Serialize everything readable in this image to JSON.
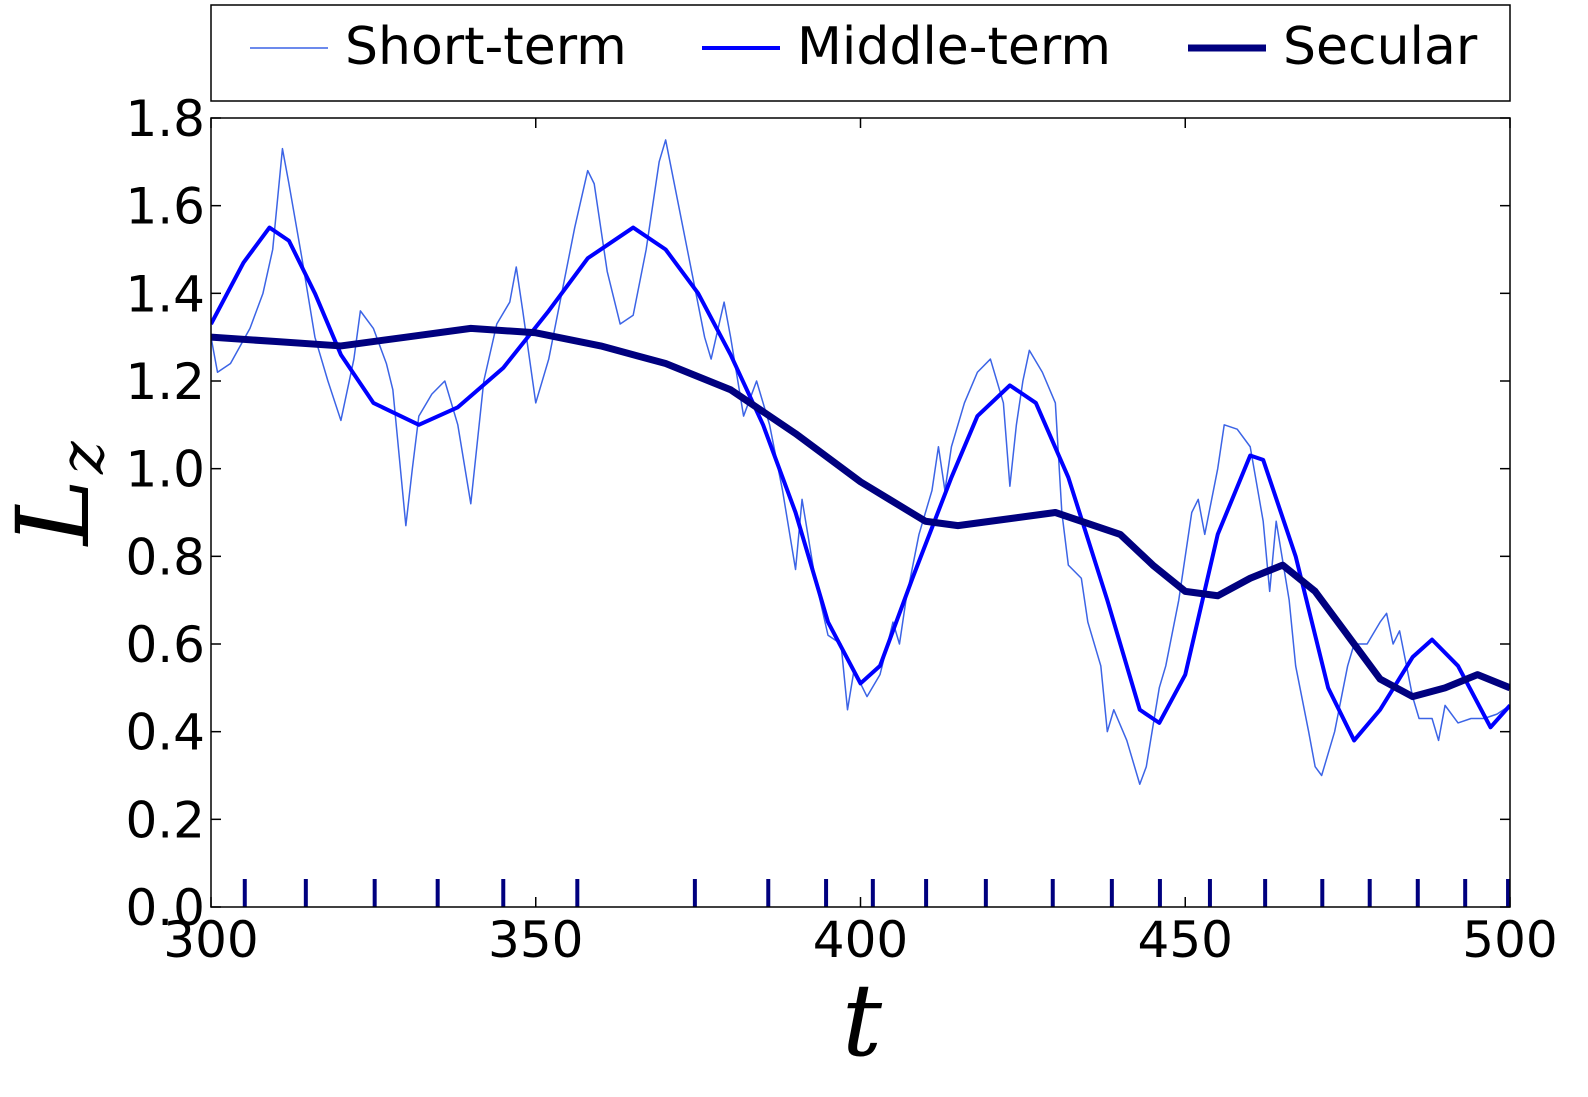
{
  "chart_data": {
    "type": "line",
    "xlabel": "t",
    "ylabel": {
      "main": "L",
      "sub": "z"
    },
    "xlim": [
      300,
      500
    ],
    "ylim": [
      0,
      1.8
    ],
    "xticks": [
      300,
      350,
      400,
      450,
      500
    ],
    "yticks": [
      {
        "value": 0,
        "label": "0.0"
      },
      0.2,
      0.4,
      0.6,
      0.8,
      {
        "value": 1,
        "label": "1.0"
      },
      1.2,
      1.4,
      1.6,
      1.8
    ],
    "legend": "top-outside",
    "series": [
      {
        "name": "Short-term",
        "color": "#3c64e6",
        "width": 1.5,
        "x": [
          300,
          301,
          303,
          306,
          308,
          309.5,
          311,
          312,
          314,
          316,
          318,
          320,
          322,
          323,
          325,
          327,
          328,
          330,
          331,
          332,
          334,
          336,
          338,
          340,
          342,
          344,
          346,
          347,
          348,
          350,
          352,
          354,
          356,
          358,
          359,
          361,
          363,
          365,
          367,
          369,
          370,
          372,
          374,
          376,
          377,
          379,
          380,
          382,
          384,
          386,
          388,
          390,
          391,
          393,
          395,
          397,
          398,
          399,
          401,
          403,
          405,
          406,
          407,
          409,
          411,
          412,
          413,
          414,
          416,
          418,
          420,
          422,
          423,
          424,
          425,
          426,
          428,
          430,
          431,
          432,
          434,
          435,
          437,
          438,
          439,
          441,
          443,
          444,
          446,
          447,
          449,
          451,
          452,
          453,
          455,
          456,
          458,
          460,
          462,
          463,
          464,
          466,
          467,
          469,
          470,
          471,
          473,
          475,
          476,
          478,
          480,
          481,
          482,
          483,
          485,
          486,
          488,
          489,
          490,
          492,
          494,
          496,
          498,
          500
        ],
        "values": [
          1.3,
          1.22,
          1.24,
          1.32,
          1.4,
          1.5,
          1.73,
          1.65,
          1.48,
          1.3,
          1.2,
          1.11,
          1.25,
          1.36,
          1.32,
          1.24,
          1.18,
          0.87,
          1.0,
          1.12,
          1.17,
          1.2,
          1.1,
          0.92,
          1.2,
          1.33,
          1.38,
          1.46,
          1.36,
          1.15,
          1.25,
          1.4,
          1.55,
          1.68,
          1.65,
          1.45,
          1.33,
          1.35,
          1.5,
          1.7,
          1.75,
          1.6,
          1.45,
          1.3,
          1.25,
          1.38,
          1.3,
          1.12,
          1.2,
          1.1,
          0.95,
          0.77,
          0.93,
          0.75,
          0.62,
          0.6,
          0.45,
          0.54,
          0.48,
          0.53,
          0.65,
          0.6,
          0.7,
          0.85,
          0.95,
          1.05,
          0.95,
          1.05,
          1.15,
          1.22,
          1.25,
          1.15,
          0.96,
          1.1,
          1.2,
          1.27,
          1.22,
          1.15,
          0.9,
          0.78,
          0.75,
          0.65,
          0.55,
          0.4,
          0.45,
          0.38,
          0.28,
          0.32,
          0.5,
          0.55,
          0.7,
          0.9,
          0.93,
          0.85,
          1.0,
          1.1,
          1.09,
          1.05,
          0.88,
          0.72,
          0.88,
          0.7,
          0.55,
          0.4,
          0.32,
          0.3,
          0.4,
          0.55,
          0.6,
          0.6,
          0.65,
          0.67,
          0.6,
          0.63,
          0.48,
          0.43,
          0.43,
          0.38,
          0.46,
          0.42,
          0.43,
          0.43,
          0.44,
          0.46
        ]
      },
      {
        "name": "Middle-term",
        "color": "#0000ff",
        "width": 4,
        "x": [
          300,
          305,
          309,
          312,
          316,
          320,
          325,
          332,
          338,
          345,
          352,
          358,
          365,
          370,
          375,
          380,
          385,
          390,
          395,
          400,
          403,
          408,
          414,
          418,
          423,
          427,
          432,
          438,
          443,
          446,
          450,
          455,
          460,
          462,
          467,
          472,
          476,
          480,
          485,
          488,
          492,
          497,
          500
        ],
        "values": [
          1.33,
          1.47,
          1.55,
          1.52,
          1.4,
          1.26,
          1.15,
          1.1,
          1.14,
          1.23,
          1.36,
          1.48,
          1.55,
          1.5,
          1.4,
          1.26,
          1.1,
          0.9,
          0.65,
          0.51,
          0.55,
          0.75,
          0.98,
          1.12,
          1.19,
          1.15,
          0.98,
          0.7,
          0.45,
          0.42,
          0.53,
          0.85,
          1.03,
          1.02,
          0.8,
          0.5,
          0.38,
          0.45,
          0.57,
          0.61,
          0.55,
          0.41,
          0.46
        ]
      },
      {
        "name": "Secular",
        "color": "#00007f",
        "width": 7,
        "x": [
          300,
          310,
          320,
          330,
          340,
          350,
          360,
          370,
          380,
          390,
          400,
          410,
          415,
          420,
          430,
          440,
          445,
          450,
          455,
          460,
          465,
          470,
          475,
          480,
          485,
          490,
          495,
          500
        ],
        "values": [
          1.3,
          1.29,
          1.28,
          1.3,
          1.32,
          1.31,
          1.28,
          1.24,
          1.18,
          1.08,
          0.97,
          0.88,
          0.87,
          0.88,
          0.9,
          0.85,
          0.78,
          0.72,
          0.71,
          0.75,
          0.78,
          0.72,
          0.62,
          0.52,
          0.48,
          0.5,
          0.53,
          0.5
        ]
      }
    ],
    "event_color": "#00007f",
    "event_x": [
      305.2,
      314.6,
      325.2,
      334.9,
      345.0,
      356.4,
      374.5,
      385.8,
      394.7,
      401.9,
      410.1,
      419.3,
      429.6,
      438.7,
      446.1,
      453.8,
      462.3,
      471.1,
      478.4,
      485.8,
      493.1,
      499.7
    ]
  }
}
